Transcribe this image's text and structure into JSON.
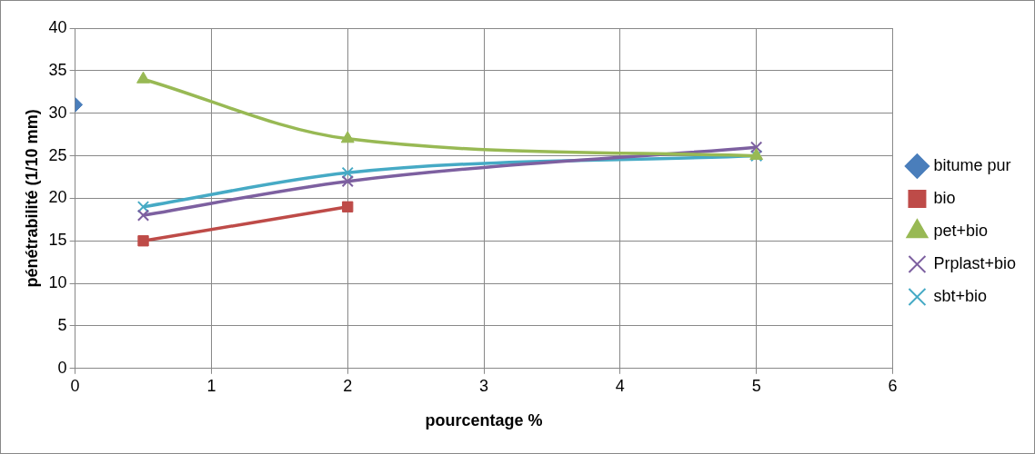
{
  "chart_data": {
    "type": "line",
    "xlabel": "pourcentage %",
    "ylabel": "pénétrabilité (1/10 mm)",
    "xlim": [
      0,
      6
    ],
    "xticks": [
      0,
      1,
      2,
      3,
      4,
      5,
      6
    ],
    "ylim": [
      0,
      40
    ],
    "yticks": [
      0,
      5,
      10,
      15,
      20,
      25,
      30,
      35,
      40
    ],
    "grid": true,
    "legend": "right",
    "series": [
      {
        "name": "bitume pur",
        "color": "#4a7ebb",
        "marker": "diamond",
        "x": [
          0
        ],
        "values": [
          31
        ]
      },
      {
        "name": "bio",
        "color": "#be4b48",
        "marker": "square",
        "x": [
          0.5,
          2
        ],
        "values": [
          15,
          19
        ]
      },
      {
        "name": "pet+bio",
        "color": "#98b954",
        "marker": "triangle",
        "x": [
          0.5,
          2,
          5
        ],
        "values": [
          34,
          27,
          25
        ]
      },
      {
        "name": "Prplast+bio",
        "color": "#7d60a0",
        "marker": "cross",
        "x": [
          0.5,
          2,
          5
        ],
        "values": [
          18,
          22,
          26
        ]
      },
      {
        "name": "sbt+bio",
        "color": "#46aac5",
        "marker": "cross",
        "x": [
          0.5,
          2,
          5
        ],
        "values": [
          19,
          23,
          25
        ]
      }
    ]
  }
}
